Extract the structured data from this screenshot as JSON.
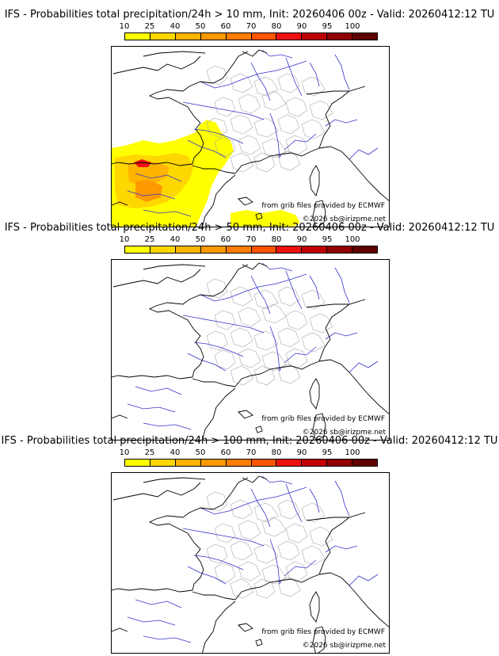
{
  "panels": [
    {
      "title": "IFS - Probabilities total precipitation/24h > 10 mm, Init: 20260406 00z - Valid: 20260412:12 TU",
      "threshold_mm": 10,
      "has_precip": true,
      "source_label": "from grib files provided by ECMWF",
      "copyright_label": "©2026 sb@irizpme.net"
    },
    {
      "title": "IFS - Probabilities total precipitation/24h > 50 mm, Init: 20260406 00z - Valid: 20260412:12 TU",
      "threshold_mm": 50,
      "has_precip": false,
      "source_label": "from grib files provided by ECMWF",
      "copyright_label": "©2026 sb@irizpme.net"
    },
    {
      "title": "IFS - Probabilities total precipitation/24h > 100 mm, Init: 20260406 00z - Valid: 20260412:12 TU",
      "threshold_mm": 100,
      "has_precip": false,
      "source_label": "from grib files provided by ECMWF",
      "copyright_label": "©2026 sb@irizpme.net"
    }
  ],
  "colorbar": {
    "labels": [
      "10",
      "25",
      "40",
      "50",
      "60",
      "70",
      "80",
      "90",
      "95",
      "100"
    ],
    "colors": [
      "#ffff00",
      "#ffd700",
      "#ffb400",
      "#ff9900",
      "#ff7d00",
      "#ff5500",
      "#ee1111",
      "#c00000",
      "#900000",
      "#600000"
    ]
  },
  "map_colors": {
    "coast": "#000000",
    "rivers": "#3333cc",
    "admin": "#a9a9a9"
  }
}
